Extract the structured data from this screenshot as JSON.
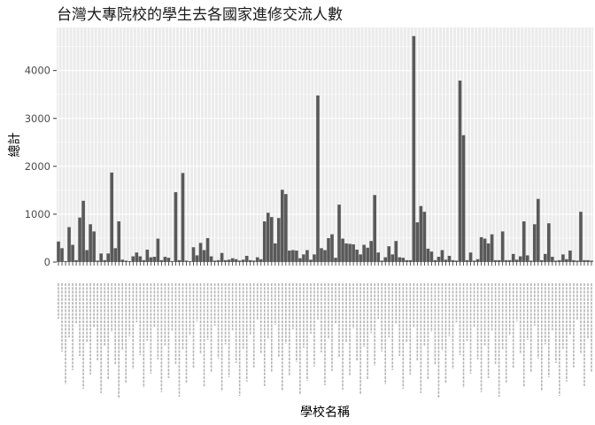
{
  "chart_data": {
    "type": "bar",
    "title": "台灣大專院校的學生去各國家進修交流人數",
    "xlabel": "學校名稱",
    "ylabel": "總計",
    "ylim": [
      0,
      4900
    ],
    "yticks": [
      0,
      1000,
      2000,
      3000,
      4000
    ],
    "grid": true,
    "bar_color": "#595959",
    "panel_color": "#ebebeb",
    "grid_color": "#ffffff",
    "values": [
      430,
      290,
      20,
      730,
      360,
      40,
      930,
      1280,
      250,
      790,
      640,
      30,
      180,
      40,
      180,
      1870,
      290,
      850,
      50,
      30,
      20,
      120,
      200,
      120,
      40,
      260,
      100,
      110,
      490,
      40,
      110,
      90,
      20,
      1460,
      40,
      1860,
      30,
      20,
      310,
      140,
      400,
      250,
      500,
      120,
      30,
      40,
      190,
      40,
      50,
      80,
      60,
      30,
      50,
      130,
      40,
      30,
      100,
      60,
      850,
      1030,
      940,
      390,
      920,
      1510,
      1420,
      240,
      250,
      240,
      80,
      160,
      250,
      50,
      160,
      3480,
      290,
      250,
      500,
      580,
      90,
      1200,
      490,
      390,
      380,
      370,
      260,
      160,
      360,
      300,
      440,
      1400,
      200,
      30,
      100,
      330,
      160,
      440,
      100,
      90,
      40,
      40,
      4720,
      830,
      1170,
      1050,
      280,
      220,
      40,
      110,
      250,
      50,
      130,
      40,
      30,
      3790,
      2650,
      40,
      200,
      30,
      60,
      520,
      490,
      390,
      580,
      40,
      40,
      640,
      40,
      40,
      170,
      50,
      120,
      850,
      140,
      30,
      790,
      1320,
      40,
      170,
      810,
      110,
      30,
      40,
      160,
      60,
      240,
      40,
      30,
      1050,
      40,
      40,
      30
    ]
  }
}
